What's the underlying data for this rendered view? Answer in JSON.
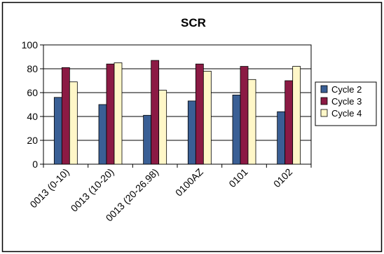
{
  "chart_data": {
    "type": "bar",
    "title": "SCR",
    "xlabel": "",
    "ylabel": "",
    "ylim": [
      0,
      100
    ],
    "yticks": [
      0,
      20,
      40,
      60,
      80,
      100
    ],
    "grid": true,
    "legend_position": "right",
    "categories": [
      "0013 (0-10)",
      "0013 (10-20)",
      "0013 (20-26.98)",
      "0100AZ",
      "0101",
      "0102"
    ],
    "series": [
      {
        "name": "Cycle 2",
        "color": "#3a5f95",
        "values": [
          56,
          50,
          41,
          53,
          58,
          44
        ]
      },
      {
        "name": "Cycle 3",
        "color": "#8b1a44",
        "values": [
          81,
          84,
          87,
          84,
          82,
          70
        ]
      },
      {
        "name": "Cycle 4",
        "color": "#fff7c8",
        "values": [
          69,
          85,
          62,
          78,
          71,
          82
        ]
      }
    ]
  }
}
